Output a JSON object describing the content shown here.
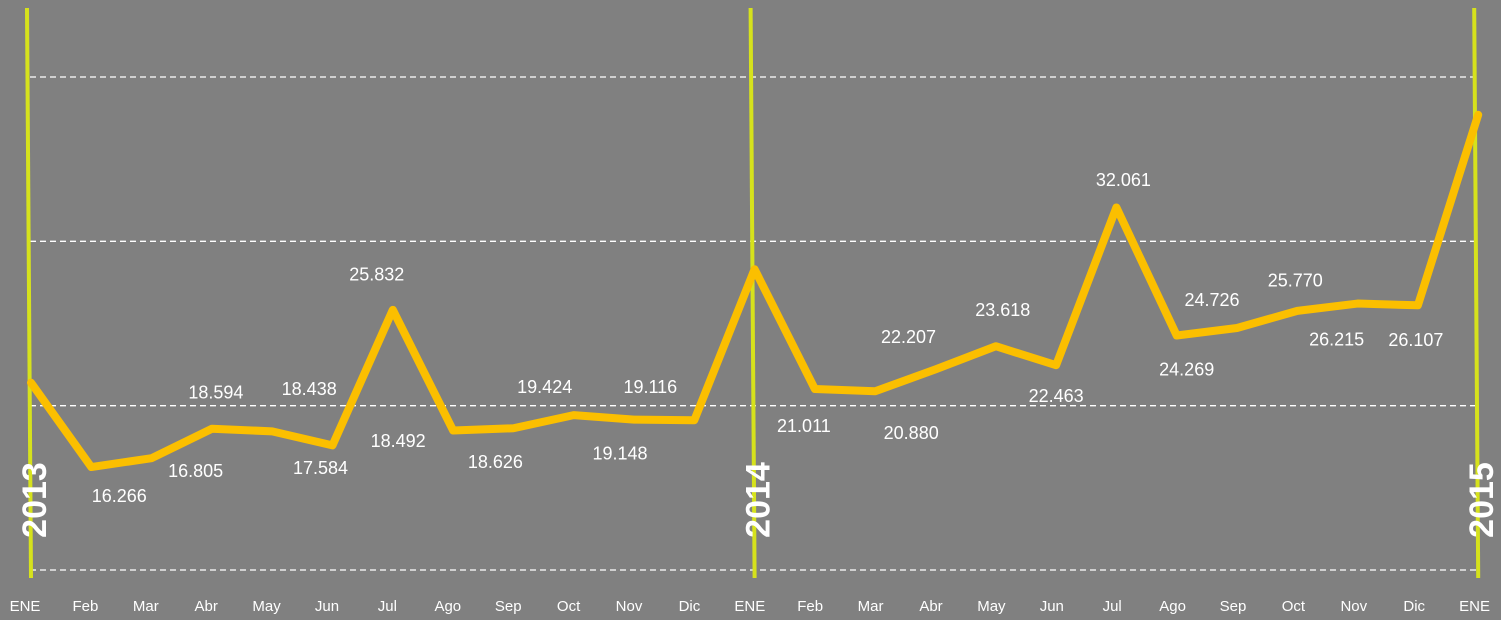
{
  "chart_data": {
    "type": "line",
    "categories": [
      "ENE",
      "Feb",
      "Mar",
      "Abr",
      "May",
      "Jun",
      "Jul",
      "Ago",
      "Sep",
      "Oct",
      "Nov",
      "Dic",
      "ENE",
      "Feb",
      "Mar",
      "Abr",
      "May",
      "Jun",
      "Jul",
      "Ago",
      "Sep",
      "Oct",
      "Nov",
      "Dic",
      "ENE"
    ],
    "series": [
      {
        "color": "#fbbf00",
        "values": [
          21.4,
          16.266,
          16.805,
          18.594,
          18.438,
          17.584,
          25.832,
          18.492,
          18.626,
          19.424,
          19.148,
          19.116,
          28.3,
          21.011,
          20.88,
          22.207,
          23.618,
          22.463,
          32.061,
          24.269,
          24.726,
          25.77,
          26.215,
          26.107,
          37.7
        ],
        "value_labels": [
          null,
          "16.266",
          "16.805",
          "18.594",
          "18.438",
          "17.584",
          "25.832",
          "18.492",
          "18.626",
          "19.424",
          "19.148",
          "19.116",
          null,
          "21.011",
          "20.880",
          "22.207",
          "23.618",
          "22.463",
          "32.061",
          "24.269",
          "24.726",
          "25.770",
          "26.215",
          "26.107",
          null
        ]
      }
    ],
    "annotations": [
      {
        "text": "2013",
        "index": 0
      },
      {
        "text": "2014",
        "index": 12
      },
      {
        "text": "2015",
        "index": 24
      }
    ],
    "annotation_color": "#d6e21c",
    "ylim": [
      10,
      40
    ],
    "yticks": [
      10,
      20,
      30,
      40
    ],
    "grid": true
  }
}
